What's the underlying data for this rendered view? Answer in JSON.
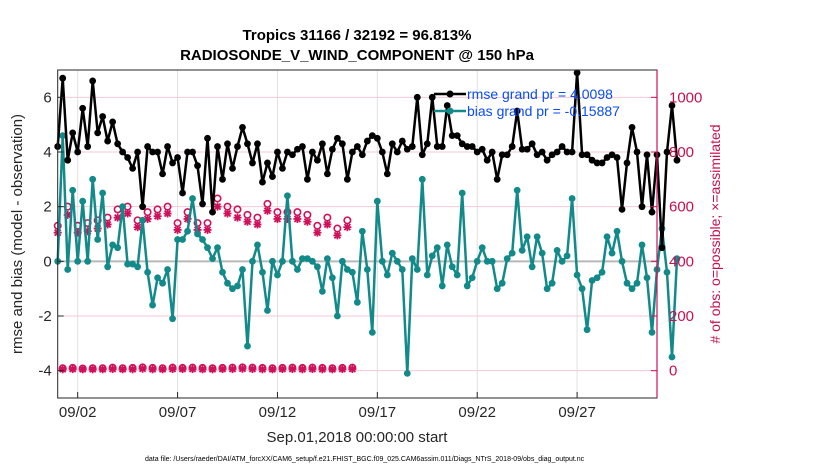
{
  "chart_data": {
    "type": "line",
    "title": "Tropics 31166 / 32192 = 96.813%",
    "subtitle": "RADIOSONDE_V_WIND_COMPONENT @ 150 hPa",
    "xlabel": "Sep.01,2018 00:00:00 start",
    "ylabel": "rmse and bias (model - observation)",
    "ylabel_right": "# of obs: o=possible; ×=assimilated",
    "footer": "data file: /Users/raeder/DAI/ATM_forcXX/CAM6_setup/f.e21.FHIST_BGC.f09_025.CAM6assim.011/Diags_NTrS_2018-09/obs_diag_output.nc",
    "x_unit": "days since Sep.01,2018 00:00",
    "x_step_days": 0.25,
    "xlim": [
      0,
      30
    ],
    "ylim": [
      -5,
      7
    ],
    "ylim_right": [
      -100,
      1100
    ],
    "grid": true,
    "zero_line": true,
    "x_ticks": [
      {
        "value": 1,
        "label": "09/02"
      },
      {
        "value": 6,
        "label": "09/07"
      },
      {
        "value": 11,
        "label": "09/12"
      },
      {
        "value": 16,
        "label": "09/17"
      },
      {
        "value": 21,
        "label": "09/22"
      },
      {
        "value": 26,
        "label": "09/27"
      }
    ],
    "y_ticks": [
      -4,
      -2,
      0,
      2,
      4,
      6
    ],
    "y_ticks_right": [
      0,
      200,
      400,
      600,
      800,
      1000
    ],
    "legend": {
      "placement": "top-right",
      "entries": [
        {
          "label": "rmse grand pr = 4.0098",
          "color": "#000000"
        },
        {
          "label": "bias grand pr = -0.15887",
          "color": "#128a8a"
        }
      ]
    },
    "colors": {
      "rmse": "#000000",
      "bias": "#128a8a",
      "obs": "#d0105a",
      "legend_text": "#0a4cf5",
      "zero_line": "#b8b8b8",
      "grid": "#e0e0e0",
      "grid_y": "#f4c8d4"
    },
    "series": [
      {
        "name": "rmse",
        "axis": "left",
        "values": [
          4.2,
          6.7,
          3.7,
          4.7,
          4.0,
          5.6,
          4.2,
          6.6,
          4.7,
          5.3,
          4.4,
          5.1,
          4.3,
          4.0,
          3.8,
          3.4,
          4.0,
          2.0,
          4.2,
          4.0,
          4.0,
          3.2,
          4.2,
          3.6,
          3.8,
          2.5,
          4.0,
          4.0,
          3.5,
          2.1,
          4.5,
          1.8,
          4.2,
          3.0,
          4.3,
          3.4,
          4.2,
          4.9,
          4.3,
          3.6,
          4.3,
          2.9,
          3.6,
          3.1,
          4.0,
          3.4,
          4.0,
          3.9,
          4.1,
          4.2,
          3.0,
          4.0,
          3.7,
          4.3,
          3.2,
          4.1,
          4.5,
          4.3,
          3.0,
          4.0,
          4.2,
          3.9,
          4.4,
          4.6,
          4.5,
          4.0,
          3.2,
          4.3,
          4.0,
          4.4,
          4.1,
          4.2,
          6.0,
          3.9,
          4.3,
          6.0,
          4.2,
          4.2,
          5.7,
          4.6,
          4.6,
          4.3,
          4.2,
          4.2,
          4.0,
          4.1,
          3.7,
          4.0,
          3.0,
          3.9,
          3.9,
          4.2,
          5.5,
          4.1,
          4.1,
          4.3,
          3.9,
          4.0,
          3.7,
          3.9,
          4.0,
          4.2,
          4.0,
          4.0,
          6.9,
          3.9,
          3.9,
          3.7,
          3.6,
          3.6,
          3.8,
          3.9,
          3.8,
          1.9,
          3.6,
          4.9,
          4.0,
          2.0,
          3.9,
          1.8,
          3.9,
          0.5,
          4.0,
          5.7,
          3.7
        ]
      },
      {
        "name": "bias",
        "axis": "left",
        "values": [
          0.0,
          4.6,
          -0.3,
          2.6,
          0.0,
          2.2,
          0.0,
          3.0,
          0.8,
          2.5,
          -0.2,
          0.6,
          0.5,
          2.0,
          -0.1,
          -0.1,
          -0.2,
          1.5,
          -0.4,
          -1.6,
          -0.6,
          -0.8,
          -0.3,
          -2.1,
          0.8,
          0.8,
          1.1,
          2.3,
          1.0,
          0.8,
          0.5,
          0.1,
          0.5,
          -0.4,
          -0.8,
          -1.0,
          -0.9,
          -0.3,
          -3.1,
          0.0,
          0.6,
          -0.4,
          -1.8,
          0.0,
          -0.5,
          0.0,
          2.4,
          0.0,
          -0.3,
          0.1,
          0.1,
          0.0,
          -0.2,
          -1.1,
          0.1,
          -0.6,
          -2.0,
          0.0,
          -0.3,
          -0.4,
          -1.5,
          1.1,
          -0.3,
          -2.6,
          2.2,
          0.0,
          -0.5,
          0.3,
          0.0,
          -0.3,
          -4.1,
          0.1,
          -0.3,
          3.0,
          -0.5,
          0.2,
          0.5,
          -0.9,
          0.6,
          -0.2,
          -0.5,
          2.5,
          -0.9,
          -0.6,
          0.0,
          0.5,
          0.0,
          0.0,
          -1.0,
          -0.8,
          0.1,
          0.3,
          2.6,
          0.4,
          0.9,
          -0.2,
          0.9,
          0.3,
          -1.0,
          -0.8,
          0.4,
          0.0,
          0.2,
          2.3,
          -0.5,
          -1.0,
          -2.5,
          -0.7,
          -0.6,
          -0.4,
          0.9,
          0.3,
          1.1,
          0.0,
          -0.8,
          -1.0,
          -0.8,
          0.6,
          -0.6,
          -2.6,
          -0.3,
          1.2,
          -0.4,
          -3.5,
          0.1
        ]
      },
      {
        "name": "obs_possible",
        "axis": "right",
        "marker": "o",
        "values": [
          530,
          9,
          600,
          10,
          530,
          8,
          540,
          9,
          550,
          9,
          560,
          11,
          590,
          9,
          600,
          10,
          550,
          12,
          580,
          10,
          590,
          9,
          600,
          11,
          540,
          10,
          580,
          11,
          540,
          10,
          540,
          9,
          630,
          10,
          600,
          11,
          590,
          12,
          570,
          11,
          560,
          10,
          610,
          9,
          580,
          10,
          580,
          11,
          580,
          10,
          570,
          11,
          530,
          10,
          560,
          9,
          520,
          10,
          550,
          11
        ]
      },
      {
        "name": "obs_assimilated",
        "axis": "right",
        "marker": "*",
        "values": [
          505,
          5,
          570,
          6,
          505,
          5,
          510,
          5,
          520,
          5,
          535,
          6,
          560,
          5,
          575,
          5,
          525,
          7,
          555,
          5,
          565,
          5,
          575,
          6,
          515,
          6,
          555,
          6,
          515,
          5,
          515,
          5,
          600,
          6,
          575,
          6,
          560,
          7,
          545,
          6,
          535,
          5,
          585,
          5,
          555,
          6,
          555,
          6,
          555,
          5,
          545,
          6,
          505,
          5,
          535,
          5,
          495,
          6,
          525,
          6
        ]
      }
    ]
  }
}
